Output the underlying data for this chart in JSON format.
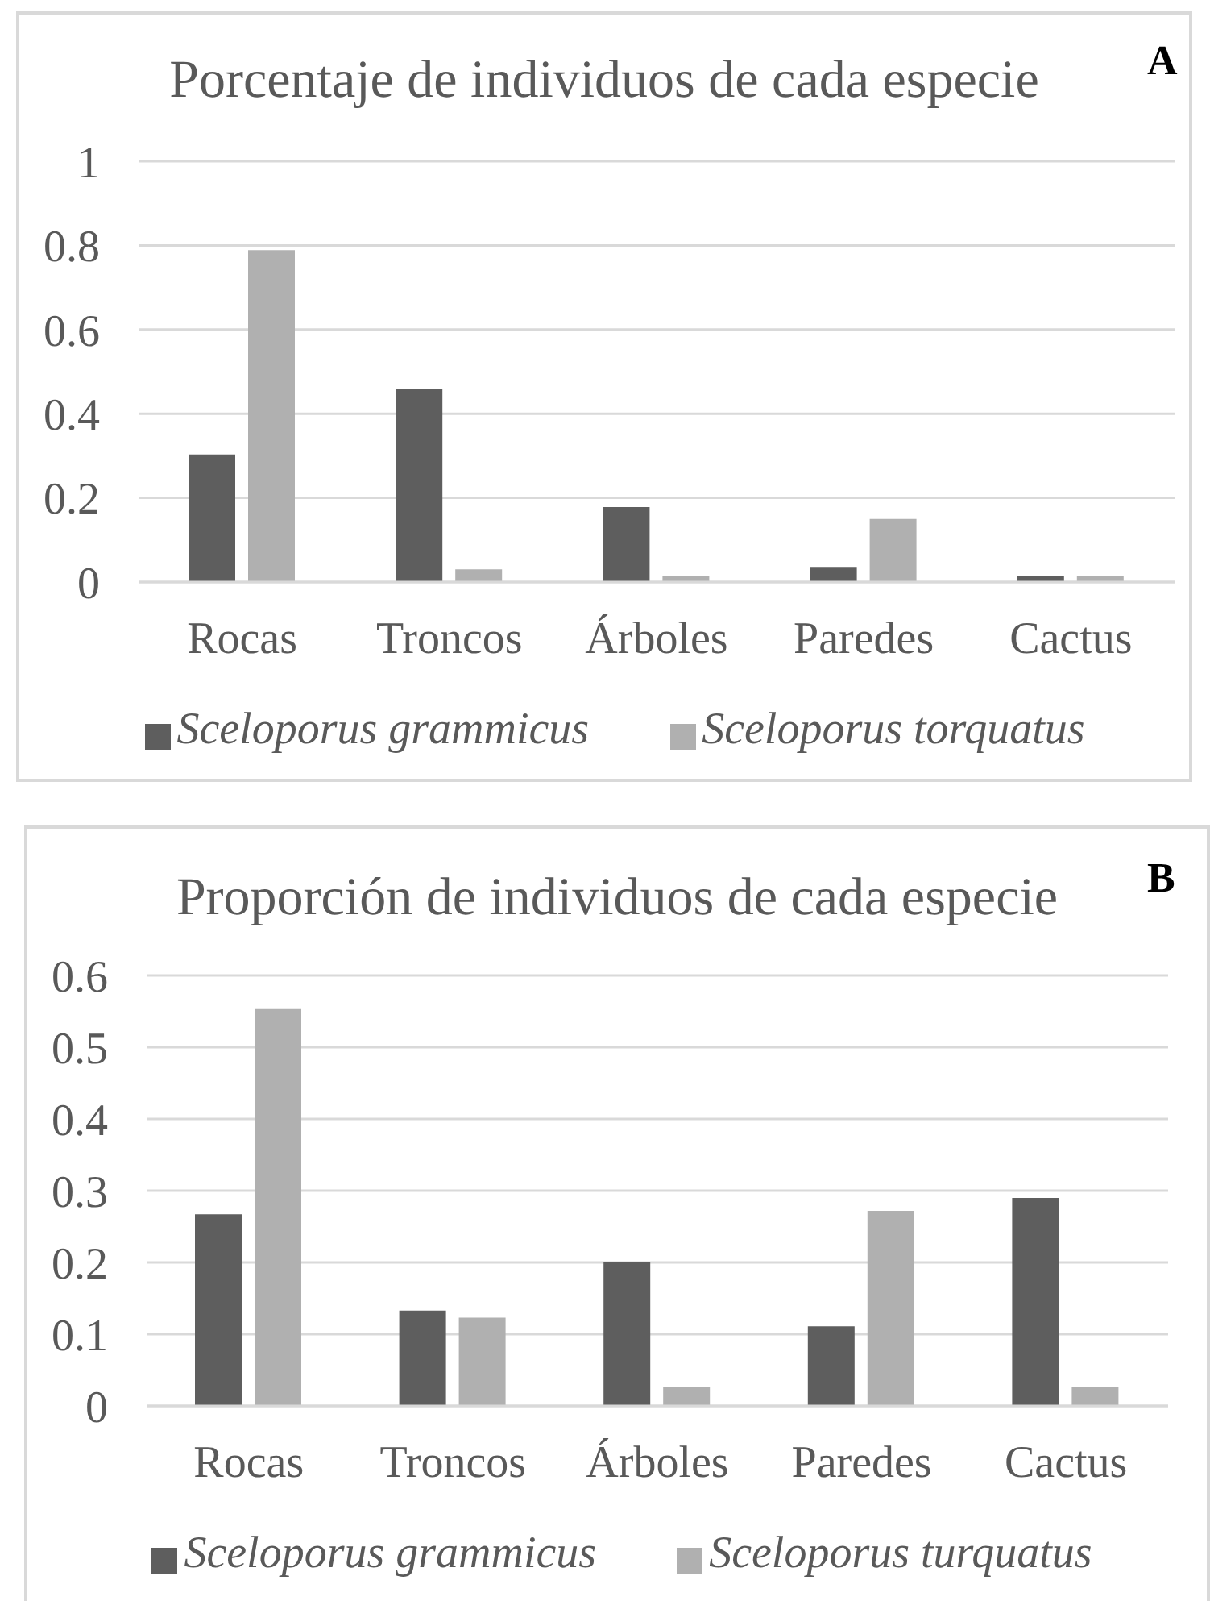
{
  "chart_data": [
    {
      "type": "bar",
      "title": "Porcentaje de individuos de cada especie",
      "annotations": [
        "A"
      ],
      "categories": [
        "Rocas",
        "Troncos",
        "Árboles",
        "Paredes",
        "Cactus"
      ],
      "series": [
        {
          "name": "Sceloporus grammicus",
          "color": "#5e5e5e",
          "values": [
            0.303,
            0.46,
            0.178,
            0.036,
            0.015
          ]
        },
        {
          "name": "Sceloporus torquatus",
          "color": "#b0b0b0",
          "values": [
            0.789,
            0.03,
            0.015,
            0.15,
            0.015
          ]
        }
      ],
      "ylim": [
        0,
        1
      ],
      "yticks": [
        0,
        0.2,
        0.4,
        0.6,
        0.8,
        1
      ],
      "grid": "y",
      "legend": "bottom"
    },
    {
      "type": "bar",
      "title": "Proporción de individuos de cada especie",
      "annotations": [
        "B"
      ],
      "categories": [
        "Rocas",
        "Troncos",
        "Árboles",
        "Paredes",
        "Cactus"
      ],
      "series": [
        {
          "name": "Sceloporus grammicus",
          "color": "#5e5e5e",
          "values": [
            0.267,
            0.133,
            0.2,
            0.111,
            0.29
          ]
        },
        {
          "name": "Sceloporus turquatus",
          "color": "#b0b0b0",
          "values": [
            0.553,
            0.123,
            0.027,
            0.272,
            0.027
          ]
        }
      ],
      "ylim": [
        0,
        0.6
      ],
      "yticks": [
        0,
        0.1,
        0.2,
        0.3,
        0.4,
        0.5,
        0.6
      ],
      "grid": "y",
      "legend": "bottom"
    }
  ]
}
